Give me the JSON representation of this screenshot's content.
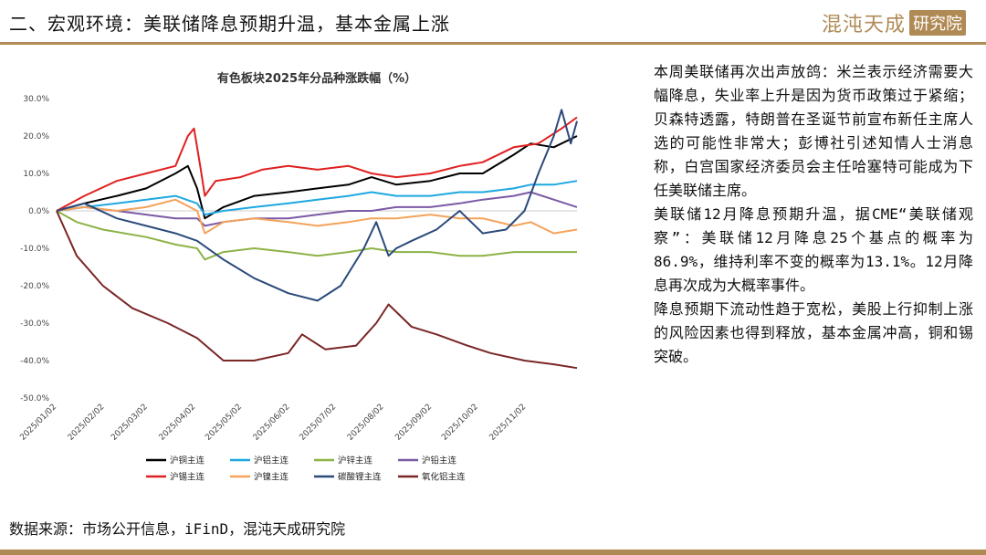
{
  "header": {
    "title": "二、宏观环境：美联储降息预期升温，基本金属上涨",
    "logo_brand": "混沌天成",
    "logo_badge": "研究院",
    "accent_color": "#b08a55"
  },
  "side_text": [
    "本周美联储再次出声放鸽：米兰表示经济需要大幅降息，失业率上升是因为货币政策过于紧缩；贝森特透露，特朗普在圣诞节前宣布新任主席人选的可能性非常大；彭博社引述知情人士消息称，白宫国家经济委员会主任哈塞特可能成为下任美联储主席。",
    "美联储12月降息预期升温，据CME“美联储观察”：美联储12月降息25个基点的概率为86.9%，维持利率不变的概率为13.1%。12月降息再次成为大概率事件。",
    "降息预期下流动性趋于宽松，美股上行抑制上涨的风险因素也得到释放，基本金属冲高，铜和锡突破。"
  ],
  "source": "数据来源：市场公开信息，iFinD，混沌天成研究院",
  "chart_data": {
    "type": "line",
    "title": "有色板块2025年分品种涨跌幅（%）",
    "ylim": [
      -50,
      30
    ],
    "yticks": [
      30,
      20,
      10,
      0,
      -10,
      -20,
      -30,
      -40,
      -50
    ],
    "ytick_labels": [
      "30.0%",
      "20.0%",
      "10.0%",
      "0.0%",
      "-10.0%",
      "-20.0%",
      "-30.0%",
      "-40.0%",
      "-50.0%"
    ],
    "xlim": [
      "2025/01/02",
      "2025/12/05"
    ],
    "xtick_labels": [
      "2025/01/02",
      "2025/02/02",
      "2025/03/02",
      "2025/04/02",
      "2025/05/02",
      "2025/06/02",
      "2025/07/02",
      "2025/08/02",
      "2025/09/02",
      "2025/10/02",
      "2025/11/02"
    ],
    "legend_position": "bottom",
    "series": [
      {
        "name": "沪铜主连",
        "color": "#000000",
        "points": [
          [
            "2025/01/02",
            0
          ],
          [
            "2025/01/20",
            2
          ],
          [
            "2025/02/10",
            4
          ],
          [
            "2025/03/01",
            6
          ],
          [
            "2025/03/20",
            10
          ],
          [
            "2025/03/28",
            12
          ],
          [
            "2025/04/03",
            6
          ],
          [
            "2025/04/08",
            -2
          ],
          [
            "2025/04/20",
            1
          ],
          [
            "2025/05/10",
            4
          ],
          [
            "2025/06/01",
            5
          ],
          [
            "2025/06/20",
            6
          ],
          [
            "2025/07/10",
            7
          ],
          [
            "2025/07/25",
            9
          ],
          [
            "2025/08/10",
            7
          ],
          [
            "2025/09/01",
            8
          ],
          [
            "2025/09/20",
            10
          ],
          [
            "2025/10/05",
            10
          ],
          [
            "2025/10/25",
            15
          ],
          [
            "2025/11/05",
            18
          ],
          [
            "2025/11/20",
            17
          ],
          [
            "2025/12/05",
            20
          ]
        ]
      },
      {
        "name": "沪铝主连",
        "color": "#1ea8e0",
        "points": [
          [
            "2025/01/02",
            0
          ],
          [
            "2025/01/20",
            1
          ],
          [
            "2025/02/10",
            2
          ],
          [
            "2025/03/01",
            3
          ],
          [
            "2025/03/20",
            4
          ],
          [
            "2025/04/03",
            2
          ],
          [
            "2025/04/08",
            -1
          ],
          [
            "2025/04/20",
            0
          ],
          [
            "2025/05/10",
            1
          ],
          [
            "2025/06/01",
            2
          ],
          [
            "2025/06/20",
            3
          ],
          [
            "2025/07/10",
            4
          ],
          [
            "2025/07/25",
            5
          ],
          [
            "2025/08/10",
            4
          ],
          [
            "2025/09/01",
            4
          ],
          [
            "2025/09/20",
            5
          ],
          [
            "2025/10/05",
            5
          ],
          [
            "2025/10/25",
            6
          ],
          [
            "2025/11/05",
            7
          ],
          [
            "2025/11/20",
            7
          ],
          [
            "2025/12/05",
            8
          ]
        ]
      },
      {
        "name": "沪锌主连",
        "color": "#8db347",
        "points": [
          [
            "2025/01/02",
            0
          ],
          [
            "2025/01/15",
            -3
          ],
          [
            "2025/02/01",
            -5
          ],
          [
            "2025/03/01",
            -7
          ],
          [
            "2025/03/20",
            -9
          ],
          [
            "2025/04/03",
            -10
          ],
          [
            "2025/04/08",
            -13
          ],
          [
            "2025/04/20",
            -11
          ],
          [
            "2025/05/10",
            -10
          ],
          [
            "2025/06/01",
            -11
          ],
          [
            "2025/06/20",
            -12
          ],
          [
            "2025/07/10",
            -11
          ],
          [
            "2025/07/25",
            -10
          ],
          [
            "2025/08/10",
            -11
          ],
          [
            "2025/09/01",
            -11
          ],
          [
            "2025/09/20",
            -12
          ],
          [
            "2025/10/05",
            -12
          ],
          [
            "2025/10/25",
            -11
          ],
          [
            "2025/11/05",
            -11
          ],
          [
            "2025/11/20",
            -11
          ],
          [
            "2025/12/05",
            -11
          ]
        ]
      },
      {
        "name": "沪铅主连",
        "color": "#7b5aa6",
        "points": [
          [
            "2025/01/02",
            0
          ],
          [
            "2025/01/20",
            1
          ],
          [
            "2025/02/10",
            0
          ],
          [
            "2025/03/01",
            -1
          ],
          [
            "2025/03/20",
            -2
          ],
          [
            "2025/04/03",
            -2
          ],
          [
            "2025/04/08",
            -4
          ],
          [
            "2025/04/20",
            -3
          ],
          [
            "2025/05/10",
            -2
          ],
          [
            "2025/06/01",
            -2
          ],
          [
            "2025/06/20",
            -1
          ],
          [
            "2025/07/10",
            0
          ],
          [
            "2025/07/25",
            0
          ],
          [
            "2025/08/10",
            1
          ],
          [
            "2025/09/01",
            1
          ],
          [
            "2025/09/20",
            2
          ],
          [
            "2025/10/05",
            3
          ],
          [
            "2025/10/25",
            4
          ],
          [
            "2025/11/05",
            5
          ],
          [
            "2025/11/20",
            3
          ],
          [
            "2025/12/05",
            1
          ]
        ]
      },
      {
        "name": "沪锡主连",
        "color": "#e02020",
        "points": [
          [
            "2025/01/02",
            0
          ],
          [
            "2025/01/20",
            4
          ],
          [
            "2025/02/10",
            8
          ],
          [
            "2025/03/01",
            10
          ],
          [
            "2025/03/20",
            12
          ],
          [
            "2025/03/28",
            20
          ],
          [
            "2025/04/01",
            22
          ],
          [
            "2025/04/05",
            12
          ],
          [
            "2025/04/08",
            4
          ],
          [
            "2025/04/15",
            8
          ],
          [
            "2025/05/01",
            9
          ],
          [
            "2025/05/15",
            11
          ],
          [
            "2025/06/01",
            12
          ],
          [
            "2025/06/20",
            11
          ],
          [
            "2025/07/10",
            12
          ],
          [
            "2025/07/25",
            10
          ],
          [
            "2025/08/10",
            9
          ],
          [
            "2025/09/01",
            10
          ],
          [
            "2025/09/20",
            12
          ],
          [
            "2025/10/05",
            13
          ],
          [
            "2025/10/25",
            17
          ],
          [
            "2025/11/10",
            18
          ],
          [
            "2025/11/25",
            22
          ],
          [
            "2025/12/05",
            25
          ]
        ]
      },
      {
        "name": "沪镍主连",
        "color": "#f4a35b",
        "points": [
          [
            "2025/01/02",
            0
          ],
          [
            "2025/01/20",
            1
          ],
          [
            "2025/02/10",
            0
          ],
          [
            "2025/03/01",
            1
          ],
          [
            "2025/03/20",
            3
          ],
          [
            "2025/04/03",
            0
          ],
          [
            "2025/04/08",
            -6
          ],
          [
            "2025/04/20",
            -3
          ],
          [
            "2025/05/10",
            -2
          ],
          [
            "2025/06/01",
            -3
          ],
          [
            "2025/06/20",
            -4
          ],
          [
            "2025/07/10",
            -3
          ],
          [
            "2025/07/25",
            -2
          ],
          [
            "2025/08/10",
            -2
          ],
          [
            "2025/09/01",
            -1
          ],
          [
            "2025/09/20",
            -2
          ],
          [
            "2025/10/05",
            -2
          ],
          [
            "2025/10/25",
            -4
          ],
          [
            "2025/11/05",
            -3
          ],
          [
            "2025/11/20",
            -6
          ],
          [
            "2025/12/05",
            -5
          ]
        ]
      },
      {
        "name": "碳酸锂主连",
        "color": "#2b4a7a",
        "points": [
          [
            "2025/01/02",
            0
          ],
          [
            "2025/01/20",
            2
          ],
          [
            "2025/02/10",
            -2
          ],
          [
            "2025/03/01",
            -4
          ],
          [
            "2025/03/20",
            -6
          ],
          [
            "2025/04/03",
            -8
          ],
          [
            "2025/04/20",
            -13
          ],
          [
            "2025/05/10",
            -18
          ],
          [
            "2025/06/01",
            -22
          ],
          [
            "2025/06/20",
            -24
          ],
          [
            "2025/07/05",
            -20
          ],
          [
            "2025/07/20",
            -10
          ],
          [
            "2025/07/28",
            -3
          ],
          [
            "2025/08/05",
            -12
          ],
          [
            "2025/08/10",
            -10
          ],
          [
            "2025/08/20",
            -8
          ],
          [
            "2025/09/05",
            -5
          ],
          [
            "2025/09/20",
            0
          ],
          [
            "2025/10/05",
            -6
          ],
          [
            "2025/10/20",
            -5
          ],
          [
            "2025/11/01",
            0
          ],
          [
            "2025/11/10",
            10
          ],
          [
            "2025/11/20",
            20
          ],
          [
            "2025/11/25",
            27
          ],
          [
            "2025/12/01",
            18
          ],
          [
            "2025/12/05",
            24
          ]
        ]
      },
      {
        "name": "氧化铝主连",
        "color": "#7a2626",
        "points": [
          [
            "2025/01/02",
            0
          ],
          [
            "2025/01/15",
            -12
          ],
          [
            "2025/02/01",
            -20
          ],
          [
            "2025/02/20",
            -26
          ],
          [
            "2025/03/15",
            -30
          ],
          [
            "2025/04/03",
            -34
          ],
          [
            "2025/04/20",
            -40
          ],
          [
            "2025/05/10",
            -40
          ],
          [
            "2025/06/01",
            -38
          ],
          [
            "2025/06/10",
            -33
          ],
          [
            "2025/06/25",
            -37
          ],
          [
            "2025/07/15",
            -36
          ],
          [
            "2025/07/28",
            -30
          ],
          [
            "2025/08/05",
            -25
          ],
          [
            "2025/08/20",
            -31
          ],
          [
            "2025/09/05",
            -33
          ],
          [
            "2025/09/25",
            -36
          ],
          [
            "2025/10/10",
            -38
          ],
          [
            "2025/11/01",
            -40
          ],
          [
            "2025/11/20",
            -41
          ],
          [
            "2025/12/05",
            -42
          ]
        ]
      }
    ]
  }
}
